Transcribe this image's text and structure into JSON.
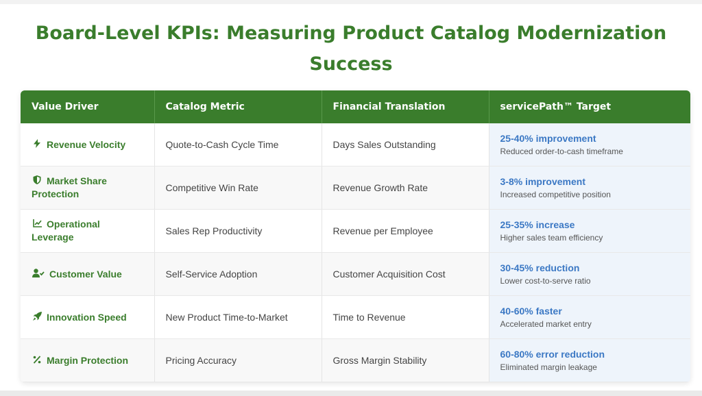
{
  "title": "Board-Level KPIs: Measuring Product Catalog Modernization Success",
  "table": {
    "headers": [
      "Value Driver",
      "Catalog Metric",
      "Financial Translation",
      "servicePath™ Target"
    ],
    "rows": [
      {
        "icon": "lightning-icon",
        "driver": "Revenue Velocity",
        "metric": "Quote-to-Cash Cycle Time",
        "financial": "Days Sales Outstanding",
        "target": "25-40% improvement",
        "target_note": "Reduced order-to-cash timeframe"
      },
      {
        "icon": "shield-icon",
        "driver": "Market Share Protection",
        "metric": "Competitive Win Rate",
        "financial": "Revenue Growth Rate",
        "target": "3-8% improvement",
        "target_note": "Increased competitive position"
      },
      {
        "icon": "chart-line-icon",
        "driver": "Operational Leverage",
        "metric": "Sales Rep Productivity",
        "financial": "Revenue per Employee",
        "target": "25-35% increase",
        "target_note": "Higher sales team efficiency"
      },
      {
        "icon": "user-check-icon",
        "driver": "Customer Value",
        "metric": "Self-Service Adoption",
        "financial": "Customer Acquisition Cost",
        "target": "30-45% reduction",
        "target_note": "Lower cost-to-serve ratio"
      },
      {
        "icon": "rocket-icon",
        "driver": "Innovation Speed",
        "metric": "New Product Time-to-Market",
        "financial": "Time to Revenue",
        "target": "40-60% faster",
        "target_note": "Accelerated market entry"
      },
      {
        "icon": "percent-icon",
        "driver": "Margin Protection",
        "metric": "Pricing Accuracy",
        "financial": "Gross Margin Stability",
        "target": "60-80% error reduction",
        "target_note": "Eliminated margin leakage"
      }
    ]
  },
  "colors": {
    "brand_green": "#3a7d2c",
    "target_blue": "#3b78c4",
    "target_bg": "#eef4fb"
  }
}
